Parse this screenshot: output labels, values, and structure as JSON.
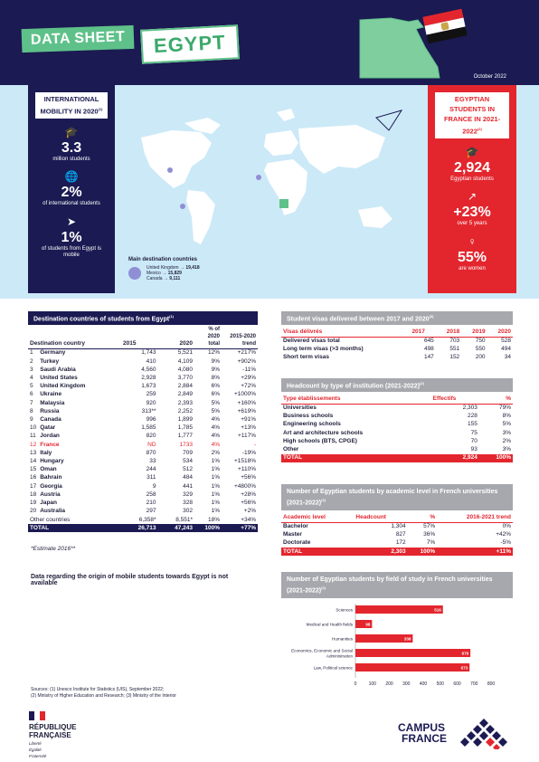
{
  "header": {
    "label": "DATA SHEET",
    "country": "EGYPT",
    "date": "October 2022"
  },
  "mobility": {
    "title": "INTERNATIONAL MOBILITY IN 2020",
    "title_sup": "(1)",
    "stats": [
      {
        "value": "3.3",
        "label": "million students",
        "icon": "graduation-cap-icon"
      },
      {
        "value": "2%",
        "label": "of international students",
        "icon": "globe-icon"
      },
      {
        "value": "1%",
        "label": "of students from Egypt is mobile",
        "icon": "paper-plane-icon"
      }
    ]
  },
  "destinations_map": {
    "title": "Main destination countries",
    "items": [
      {
        "country": "United Kingdom",
        "arrow": "→",
        "value": "19,418"
      },
      {
        "country": "Mexico",
        "arrow": "→",
        "value": "15,829"
      },
      {
        "country": "Canada",
        "arrow": "→",
        "value": "9,111"
      }
    ]
  },
  "egyptian_students": {
    "title": "EGYPTIAN STUDENTS IN FRANCE IN 2021-2022",
    "title_sup": "(2)",
    "stats": [
      {
        "value": "2,924",
        "label": "Egyptian students",
        "icon": "graduation-cap-icon"
      },
      {
        "value": "+23%",
        "label": "over 5 years",
        "icon": "growth-arrow-icon"
      },
      {
        "value": "55%",
        "label": "are women",
        "icon": "female-icon"
      }
    ]
  },
  "dest_table": {
    "title": "Destination countries of students from Egypt",
    "title_sup": "(1)",
    "headers": [
      "Destination country",
      "2015",
      "2020",
      "% of 2020 total",
      "2015-2020 trend"
    ],
    "rows": [
      [
        "1",
        "Germany",
        "1,743",
        "5,521",
        "12%",
        "+217%"
      ],
      [
        "2",
        "Turkey",
        "410",
        "4,109",
        "9%",
        "+902%"
      ],
      [
        "3",
        "Saudi Arabia",
        "4,560",
        "4,080",
        "9%",
        "-11%"
      ],
      [
        "4",
        "United States",
        "2,928",
        "3,770",
        "8%",
        "+29%"
      ],
      [
        "5",
        "United Kingdom",
        "1,673",
        "2,884",
        "6%",
        "+72%"
      ],
      [
        "6",
        "Ukraine",
        "259",
        "2,849",
        "6%",
        "+1000%"
      ],
      [
        "7",
        "Malaysia",
        "920",
        "2,393",
        "5%",
        "+160%"
      ],
      [
        "8",
        "Russia",
        "313**",
        "2,252",
        "5%",
        "+619%"
      ],
      [
        "9",
        "Canada",
        "996",
        "1,899",
        "4%",
        "+91%"
      ],
      [
        "10",
        "Qatar",
        "1,585",
        "1,785",
        "4%",
        "+13%"
      ],
      [
        "11",
        "Jordan",
        "820",
        "1,777",
        "4%",
        "+117%"
      ],
      [
        "12",
        "France",
        "ND",
        "1733",
        "4%",
        "-"
      ],
      [
        "13",
        "Italy",
        "870",
        "709",
        "2%",
        "-19%"
      ],
      [
        "14",
        "Hungary",
        "33",
        "534",
        "1%",
        "+1518%"
      ],
      [
        "15",
        "Oman",
        "244",
        "512",
        "1%",
        "+110%"
      ],
      [
        "16",
        "Bahrain",
        "311",
        "484",
        "1%",
        "+56%"
      ],
      [
        "17",
        "Georgia",
        "9",
        "441",
        "1%",
        "+4800%"
      ],
      [
        "18",
        "Austria",
        "258",
        "329",
        "1%",
        "+28%"
      ],
      [
        "19",
        "Japan",
        "210",
        "328",
        "1%",
        "+56%"
      ],
      [
        "20",
        "Australia",
        "297",
        "302",
        "1%",
        "+2%"
      ]
    ],
    "other": [
      "Other countries",
      "6,358*",
      "8,551*",
      "18%",
      "+34%"
    ],
    "total": [
      "TOTAL",
      "26,713",
      "47,243",
      "100%",
      "+77%"
    ],
    "note": "*Estimate  2016**"
  },
  "origin_note": "Data regarding the origin of mobile students towards Egypt is not available",
  "visas": {
    "title": "Student visas delivered between 2017 and 2020",
    "title_sup": "(3)",
    "headers": [
      "Visas délivrés",
      "2017",
      "2018",
      "2019",
      "2020"
    ],
    "rows": [
      [
        "Delivered visas total",
        "645",
        "703",
        "750",
        "528"
      ],
      [
        "Long term visas (>3 months)",
        "498",
        "551",
        "550",
        "494"
      ],
      [
        "Short term visas",
        "147",
        "152",
        "200",
        "34"
      ]
    ]
  },
  "headcount": {
    "title": "Headcount by type of institution (2021-2022)",
    "title_sup": "(2)",
    "headers": [
      "Type établissements",
      "Effectifs",
      "%"
    ],
    "rows": [
      [
        "Universities",
        "2,303",
        "79%"
      ],
      [
        "Business schools",
        "228",
        "8%"
      ],
      [
        "Engineering schools",
        "155",
        "5%"
      ],
      [
        "Art and architecture schools",
        "75",
        "3%"
      ],
      [
        "High schools (BTS, CPGE)",
        "70",
        "2%"
      ],
      [
        "Other",
        "93",
        "3%"
      ]
    ],
    "total": [
      "TOTAL",
      "2,924",
      "100%"
    ]
  },
  "levels": {
    "title": "Number of Egyptian students by academic level in French universities (2021-2022)",
    "title_sup": "(2)",
    "headers": [
      "Academic level",
      "Headcount",
      "%",
      "2016-2021 trend"
    ],
    "rows": [
      [
        "Bachelor",
        "1,304",
        "57%",
        "0%"
      ],
      [
        "Master",
        "827",
        "36%",
        "+42%"
      ],
      [
        "Doctorate",
        "172",
        "7%",
        "-5%"
      ]
    ],
    "total": [
      "TOTAL",
      "2,303",
      "100%",
      "+11%"
    ]
  },
  "fields": {
    "title": "Number of Egyptian students by field of study in French universities (2021-2022)",
    "title_sup": "(2)"
  },
  "chart_data": {
    "type": "bar",
    "orientation": "horizontal",
    "categories": [
      "Sciences",
      "Medical and Health fields",
      "Humanities",
      "Economics, Economic and Social Administration",
      "Law, Political science"
    ],
    "values": [
      516,
      98,
      338,
      678,
      673
    ],
    "xlim": [
      0,
      800
    ],
    "xticks": [
      0,
      100,
      200,
      300,
      400,
      500,
      600,
      700,
      800
    ],
    "bar_color": "#e3262e"
  },
  "sources": {
    "line1": "Sources: (1) Unesco Institute for Statistics (UIS), September 2022;",
    "line2": "(2) Ministry of Higher Education and Research; (3) Ministry of the Interior"
  },
  "footer": {
    "rf_line1": "RÉPUBLIQUE",
    "rf_line2": "FRANÇAISE",
    "motto": [
      "Liberté",
      "Égalité",
      "Fraternité"
    ],
    "cf_line1": "CAMPUS",
    "cf_line2": "FRANCE"
  }
}
